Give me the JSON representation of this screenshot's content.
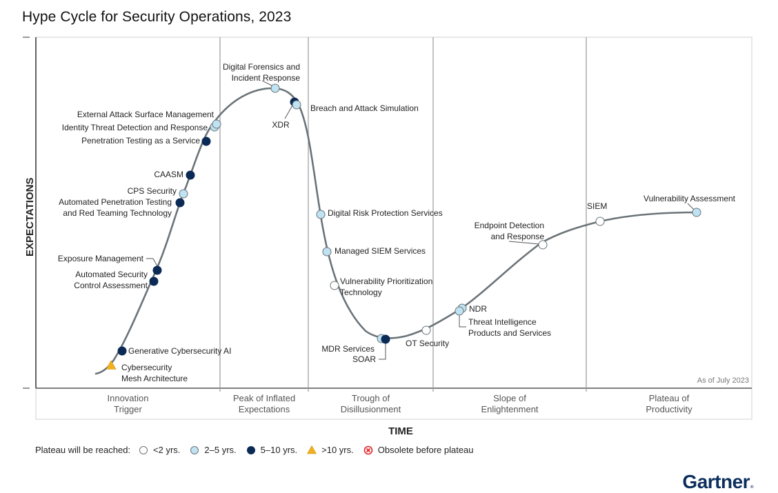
{
  "chart_data": {
    "type": "scatter",
    "subtype": "hype-cycle",
    "title": "Hype Cycle for Security Operations, 2023",
    "xlabel": "TIME",
    "ylabel": "EXPECTATIONS",
    "as_of": "As of July 2023",
    "phases": [
      {
        "name": "Innovation Trigger",
        "lines": [
          "Innovation",
          "Trigger"
        ]
      },
      {
        "name": "Peak of Inflated Expectations",
        "lines": [
          "Peak of Inflated",
          "Expectations"
        ]
      },
      {
        "name": "Trough of Disillusionment",
        "lines": [
          "Trough of",
          "Disillusionment"
        ]
      },
      {
        "name": "Slope of Enlightenment",
        "lines": [
          "Slope of",
          "Enlightenment"
        ]
      },
      {
        "name": "Plateau of Productivity",
        "lines": [
          "Plateau of",
          "Productivity"
        ]
      }
    ],
    "legend": {
      "title": "Plateau will be reached:",
      "entries": [
        {
          "key": "lt2",
          "label": "<2 yrs.",
          "symbol": "circle",
          "color": "#ffffff"
        },
        {
          "key": "2to5",
          "label": "2–5 yrs.",
          "symbol": "circle",
          "color": "#bfe3f2"
        },
        {
          "key": "5to10",
          "label": "5–10 yrs.",
          "symbol": "circle",
          "color": "#0b2a55"
        },
        {
          "key": "gt10",
          "label": ">10 yrs.",
          "symbol": "triangle",
          "color": "#f2b01e"
        },
        {
          "key": "obsolete",
          "label": "Obsolete before plateau",
          "symbol": "x-circle",
          "color": "#e0242b"
        }
      ]
    },
    "innovations": [
      {
        "name": "Cybersecurity Mesh Architecture",
        "lines": [
          "Cybersecurity",
          "Mesh Architecture"
        ],
        "phase": "Innovation Trigger",
        "position": 0.02,
        "plateau": "gt10"
      },
      {
        "name": "Generative Cybersecurity AI",
        "lines": [
          "Generative Cybersecurity AI"
        ],
        "phase": "Innovation Trigger",
        "position": 0.05,
        "plateau": "5to10"
      },
      {
        "name": "Automated Security Control Assessment",
        "lines": [
          "Automated Security",
          "Control Assessment"
        ],
        "phase": "Innovation Trigger",
        "position": 0.09,
        "plateau": "5to10"
      },
      {
        "name": "Exposure Management",
        "lines": [
          "Exposure Management"
        ],
        "phase": "Innovation Trigger",
        "position": 0.1,
        "plateau": "5to10"
      },
      {
        "name": "Automated Penetration Testing and Red Teaming Technology",
        "lines": [
          "Automated Penetration Testing",
          "and Red Teaming Technology"
        ],
        "phase": "Innovation Trigger",
        "position": 0.125,
        "plateau": "5to10"
      },
      {
        "name": "CPS Security",
        "lines": [
          "CPS Security"
        ],
        "phase": "Innovation Trigger",
        "position": 0.13,
        "plateau": "2to5"
      },
      {
        "name": "CAASM",
        "lines": [
          "CAASM"
        ],
        "phase": "Innovation Trigger",
        "position": 0.14,
        "plateau": "5to10"
      },
      {
        "name": "Penetration Testing as a Service",
        "lines": [
          "Penetration Testing as a Service"
        ],
        "phase": "Innovation Trigger",
        "position": 0.16,
        "plateau": "5to10"
      },
      {
        "name": "Identity Threat Detection and Response",
        "lines": [
          "Identity Threat Detection and Response"
        ],
        "phase": "Innovation Trigger",
        "position": 0.17,
        "plateau": "2to5"
      },
      {
        "name": "External Attack Surface Management",
        "lines": [
          "External Attack Surface Management"
        ],
        "phase": "Innovation Trigger",
        "position": 0.175,
        "plateau": "2to5"
      },
      {
        "name": "Digital Forensics and Incident Response",
        "lines": [
          "Digital Forensics and",
          "Incident Response"
        ],
        "phase": "Peak of Inflated Expectations",
        "position": 0.26,
        "plateau": "2to5"
      },
      {
        "name": "XDR",
        "lines": [
          "XDR"
        ],
        "phase": "Peak of Inflated Expectations",
        "position": 0.285,
        "plateau": "5to10"
      },
      {
        "name": "Breach and Attack Simulation",
        "lines": [
          "Breach and Attack Simulation"
        ],
        "phase": "Peak of Inflated Expectations",
        "position": 0.29,
        "plateau": "2to5"
      },
      {
        "name": "Digital Risk Protection Services",
        "lines": [
          "Digital Risk Protection Services"
        ],
        "phase": "Trough of Disillusionment",
        "position": 0.33,
        "plateau": "2to5"
      },
      {
        "name": "Managed SIEM Services",
        "lines": [
          "Managed SIEM Services"
        ],
        "phase": "Trough of Disillusionment",
        "position": 0.335,
        "plateau": "2to5"
      },
      {
        "name": "Vulnerability Prioritization Technology",
        "lines": [
          "Vulnerability Prioritization",
          "Technology"
        ],
        "phase": "Trough of Disillusionment",
        "position": 0.34,
        "plateau": "lt2"
      },
      {
        "name": "MDR Services",
        "lines": [
          "MDR Services"
        ],
        "phase": "Trough of Disillusionment",
        "position": 0.39,
        "plateau": "2to5"
      },
      {
        "name": "SOAR",
        "lines": [
          "SOAR"
        ],
        "phase": "Trough of Disillusionment",
        "position": 0.4,
        "plateau": "5to10"
      },
      {
        "name": "OT Security",
        "lines": [
          "OT Security"
        ],
        "phase": "Slope of Enlightenment",
        "position": 0.44,
        "plateau": "lt2"
      },
      {
        "name": "NDR",
        "lines": [
          "NDR"
        ],
        "phase": "Slope of Enlightenment",
        "position": 0.49,
        "plateau": "2to5"
      },
      {
        "name": "Threat Intelligence Products and Services",
        "lines": [
          "Threat Intelligence",
          "Products and Services"
        ],
        "phase": "Slope of Enlightenment",
        "position": 0.485,
        "plateau": "2to5"
      },
      {
        "name": "Endpoint Detection and Response",
        "lines": [
          "Endpoint Detection",
          "and Response"
        ],
        "phase": "Slope of Enlightenment",
        "position": 0.6,
        "plateau": "lt2"
      },
      {
        "name": "SIEM",
        "lines": [
          "SIEM"
        ],
        "phase": "Plateau of Productivity",
        "position": 0.78,
        "plateau": "lt2"
      },
      {
        "name": "Vulnerability Assessment",
        "lines": [
          "Vulnerability Assessment"
        ],
        "phase": "Plateau of Productivity",
        "position": 0.92,
        "plateau": "2to5"
      }
    ]
  },
  "brand": {
    "name": "Gartner",
    "mark": "®",
    "color": "#0c2f5e"
  },
  "colors": {
    "curve": "#6b7378",
    "divider": "#9a9a9a"
  }
}
